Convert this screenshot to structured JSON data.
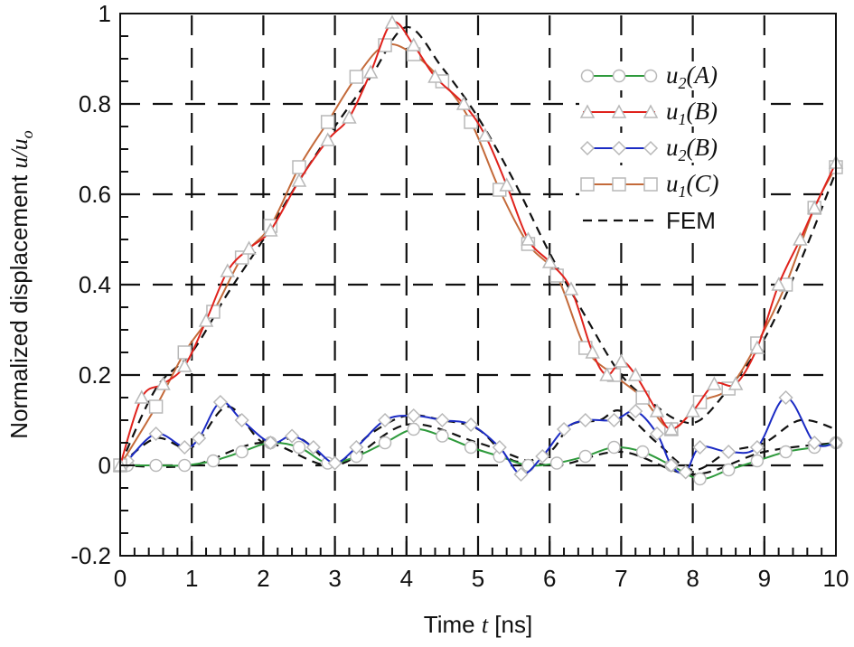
{
  "chart_data": {
    "type": "line",
    "xlabel_pre": "Time ",
    "xlabel_var": "t",
    "xlabel_post": " [ns]",
    "ylabel_pre": "Normalized displacement ",
    "ylabel_var": "u/u",
    "ylabel_sub": "o",
    "xlim": [
      0,
      10
    ],
    "ylim": [
      -0.2,
      1
    ],
    "xticks": [
      0,
      1,
      2,
      3,
      4,
      5,
      6,
      7,
      8,
      9,
      10
    ],
    "yticks": [
      -0.2,
      0,
      0.2,
      0.4,
      0.6,
      0.8,
      1
    ],
    "ytick_labels": [
      "-0.2",
      "0",
      "0.2",
      "0.4",
      "0.6",
      "0.8",
      "1"
    ],
    "grid": true,
    "legend_position": "top-right",
    "series": [
      {
        "name": "u2(A)",
        "sym": "u",
        "sub": "2",
        "arg": "(A)",
        "color": "#2e9a3c",
        "marker": "circle",
        "dash": false,
        "x": [
          0.1,
          0.5,
          0.9,
          1.3,
          1.7,
          2.1,
          2.5,
          2.9,
          3.3,
          3.7,
          4.1,
          4.5,
          4.9,
          5.3,
          5.7,
          6.1,
          6.5,
          6.9,
          7.3,
          7.7,
          8.1,
          8.5,
          8.9,
          9.3,
          9.7,
          10
        ],
        "y": [
          0,
          0,
          0,
          0.01,
          0.03,
          0.05,
          0.04,
          0.005,
          0.02,
          0.05,
          0.08,
          0.065,
          0.04,
          0.02,
          0,
          0.005,
          0.02,
          0.04,
          0.03,
          0,
          -0.03,
          -0.01,
          0.01,
          0.03,
          0.04,
          0.05
        ]
      },
      {
        "name": "u1(B)",
        "sym": "u",
        "sub": "1",
        "arg": "(B)",
        "color": "#e0221c",
        "marker": "triangle",
        "dash": false,
        "x": [
          0,
          0.3,
          0.6,
          0.9,
          1.2,
          1.5,
          1.8,
          2.1,
          2.5,
          2.9,
          3.2,
          3.5,
          3.8,
          4.1,
          4.4,
          4.8,
          5.1,
          5.4,
          5.7,
          6.0,
          6.3,
          6.6,
          6.8,
          7.0,
          7.2,
          7.5,
          7.7,
          8.0,
          8.3,
          8.6,
          8.9,
          9.2,
          9.5,
          9.7,
          10
        ],
        "y": [
          0,
          0.15,
          0.18,
          0.22,
          0.32,
          0.43,
          0.48,
          0.52,
          0.63,
          0.72,
          0.77,
          0.87,
          0.98,
          0.93,
          0.86,
          0.8,
          0.73,
          0.62,
          0.5,
          0.45,
          0.39,
          0.25,
          0.2,
          0.23,
          0.2,
          0.12,
          0.08,
          0.12,
          0.18,
          0.18,
          0.26,
          0.4,
          0.5,
          0.57,
          0.67
        ]
      },
      {
        "name": "u2(B)",
        "sym": "u",
        "sub": "2",
        "arg": "(B)",
        "color": "#1b2bc4",
        "marker": "diamond",
        "dash": false,
        "x": [
          0.1,
          0.5,
          0.9,
          1.1,
          1.4,
          1.7,
          2.1,
          2.4,
          2.7,
          3.0,
          3.3,
          3.7,
          4.1,
          4.5,
          4.9,
          5.3,
          5.6,
          5.9,
          6.2,
          6.5,
          6.9,
          7.2,
          7.5,
          7.7,
          7.9,
          8.1,
          8.5,
          8.9,
          9.3,
          9.7,
          10
        ],
        "y": [
          0.01,
          0.07,
          0.04,
          0.06,
          0.14,
          0.1,
          0.05,
          0.065,
          0.04,
          0.005,
          0.04,
          0.1,
          0.11,
          0.1,
          0.09,
          0.04,
          -0.02,
          0.02,
          0.08,
          0.1,
          0.1,
          0.12,
          0.07,
          0.0,
          -0.015,
          0.04,
          0.03,
          0.04,
          0.15,
          0.05,
          0.05
        ]
      },
      {
        "name": "u1(C)",
        "sym": "u",
        "sub": "1",
        "arg": "(C)",
        "color": "#c46a3a",
        "marker": "square",
        "dash": false,
        "x": [
          0,
          0.5,
          0.9,
          1.3,
          1.7,
          2.1,
          2.5,
          2.9,
          3.3,
          3.7,
          4.1,
          4.5,
          4.9,
          5.3,
          5.7,
          6.1,
          6.5,
          6.9,
          7.3,
          7.7,
          8.1,
          8.5,
          8.9,
          9.3,
          9.7,
          10
        ],
        "y": [
          0,
          0.13,
          0.25,
          0.34,
          0.46,
          0.53,
          0.66,
          0.76,
          0.86,
          0.93,
          0.91,
          0.85,
          0.76,
          0.61,
          0.49,
          0.42,
          0.26,
          0.2,
          0.15,
          0.08,
          0.14,
          0.17,
          0.27,
          0.4,
          0.57,
          0.66
        ]
      },
      {
        "name": "FEM",
        "label": "FEM",
        "color": "#111111",
        "marker": "none",
        "dash": true,
        "curves": [
          {
            "x": [
              0,
              0.5,
              1,
              1.5,
              2,
              2.5,
              3,
              3.5,
              4,
              4.5,
              5,
              5.5,
              6,
              6.5,
              7,
              7.5,
              7.8,
              8.1,
              8.5,
              9,
              9.5,
              10
            ],
            "y": [
              0,
              0.17,
              0.25,
              0.38,
              0.5,
              0.63,
              0.75,
              0.86,
              0.97,
              0.88,
              0.77,
              0.63,
              0.47,
              0.33,
              0.2,
              0.13,
              0.1,
              0.1,
              0.17,
              0.28,
              0.45,
              0.65
            ]
          },
          {
            "x": [
              0,
              0.5,
              1,
              1.5,
              2,
              2.5,
              3,
              3.5,
              4,
              4.5,
              5,
              5.5,
              6,
              6.3,
              6.7,
              7,
              7.5,
              8,
              8.5,
              9,
              9.5,
              10
            ],
            "y": [
              0,
              0.06,
              0.04,
              0.13,
              0.05,
              0.06,
              0.005,
              0.07,
              0.11,
              0.1,
              0.08,
              0.01,
              0.03,
              0.09,
              0.1,
              0.12,
              0.05,
              -0.01,
              0.03,
              0.05,
              0.1,
              0.08
            ]
          },
          {
            "x": [
              0,
              1,
              2,
              3,
              4,
              5,
              6,
              7,
              8,
              9,
              10
            ],
            "y": [
              0,
              0,
              0.05,
              0,
              0.09,
              0.05,
              0,
              0.03,
              -0.02,
              0.03,
              0.05
            ]
          }
        ]
      }
    ]
  }
}
